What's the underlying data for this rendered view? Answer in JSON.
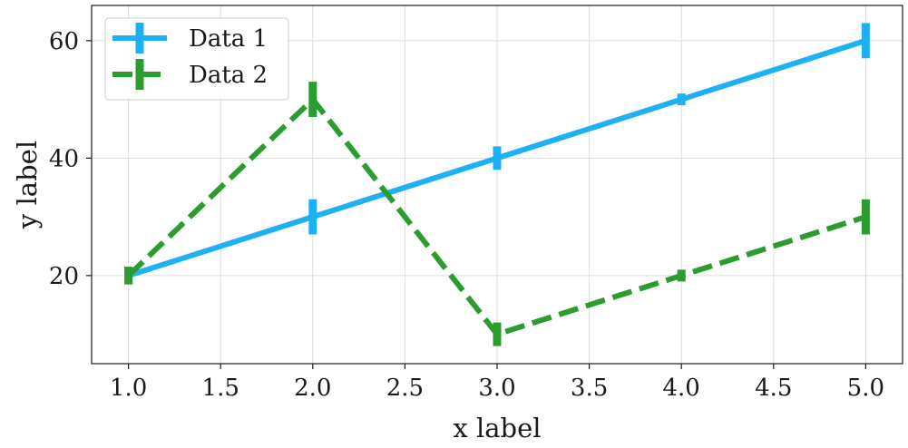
{
  "chart_data": {
    "type": "line",
    "xlabel": "x label",
    "ylabel": "y label",
    "xlim": [
      0.8,
      5.2
    ],
    "ylim": [
      5,
      66
    ],
    "xticks": [
      "1.0",
      "1.5",
      "2.0",
      "2.5",
      "3.0",
      "3.5",
      "4.0",
      "4.5",
      "5.0"
    ],
    "yticks": [
      "20",
      "40",
      "60"
    ],
    "grid": true,
    "legend_position": "top-left",
    "error_bars": true,
    "series": [
      {
        "name": "Data 1",
        "color": "#1eb0f5",
        "linestyle": "solid",
        "x": [
          1,
          2,
          3,
          4,
          5
        ],
        "y": [
          20,
          30,
          40,
          50,
          60
        ],
        "yerr": [
          1.5,
          3,
          2,
          1,
          3
        ]
      },
      {
        "name": "Data 2",
        "color": "#2a9d2e",
        "linestyle": "dashed",
        "x": [
          1,
          2,
          3,
          4,
          5
        ],
        "y": [
          20,
          50,
          10,
          20,
          30
        ],
        "yerr": [
          1.5,
          3,
          2,
          1,
          3
        ]
      }
    ]
  }
}
